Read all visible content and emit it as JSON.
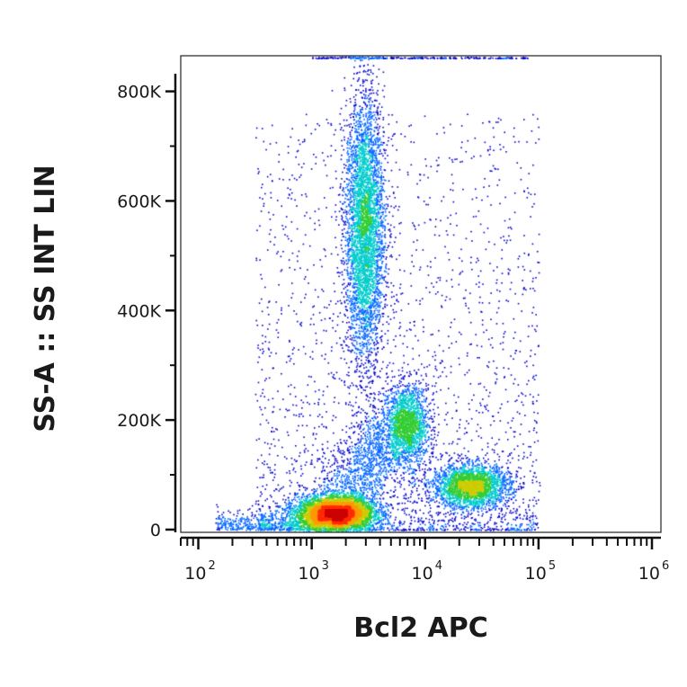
{
  "chart_data": {
    "type": "scatter",
    "plot_style": "flow cytometry pseudocolor density dot plot",
    "xlabel": "Bcl2 APC",
    "ylabel": "SS-A :: SS INT LIN",
    "x_scale": "log",
    "y_scale": "linear",
    "xlim": [
      70,
      1200000
    ],
    "ylim": [
      -5000,
      865000
    ],
    "x_ticks": [
      {
        "value": 100,
        "base": "10",
        "exp": "2"
      },
      {
        "value": 1000,
        "base": "10",
        "exp": "3"
      },
      {
        "value": 10000,
        "base": "10",
        "exp": "4"
      },
      {
        "value": 100000,
        "base": "10",
        "exp": "5"
      },
      {
        "value": 1000000,
        "base": "10",
        "exp": "6"
      }
    ],
    "y_ticks": [
      {
        "value": 0,
        "label": "0"
      },
      {
        "value": 200000,
        "label": "200K"
      },
      {
        "value": 400000,
        "label": "400K"
      },
      {
        "value": 600000,
        "label": "600K"
      },
      {
        "value": 800000,
        "label": "800K"
      }
    ],
    "density_colormap": [
      "#0000cc",
      "#0066ff",
      "#00cccc",
      "#33cc33",
      "#cccc00",
      "#ff9900",
      "#ff2a00",
      "#cc0000"
    ],
    "populations": [
      {
        "x_center": 1600,
        "y_center": 30000,
        "x_spread_log10": 0.17,
        "y_spread": 16000,
        "relative_density": 1.0
      },
      {
        "x_center": 2900,
        "y_center": 550000,
        "x_spread_log10": 0.085,
        "y_spread": 120000,
        "relative_density": 0.55
      },
      {
        "x_center": 7000,
        "y_center": 190000,
        "x_spread_log10": 0.09,
        "y_spread": 35000,
        "relative_density": 0.45
      },
      {
        "x_center": 25000,
        "y_center": 80000,
        "x_spread_log10": 0.17,
        "y_spread": 20000,
        "relative_density": 0.55
      }
    ],
    "grid": false,
    "legend": "none"
  }
}
